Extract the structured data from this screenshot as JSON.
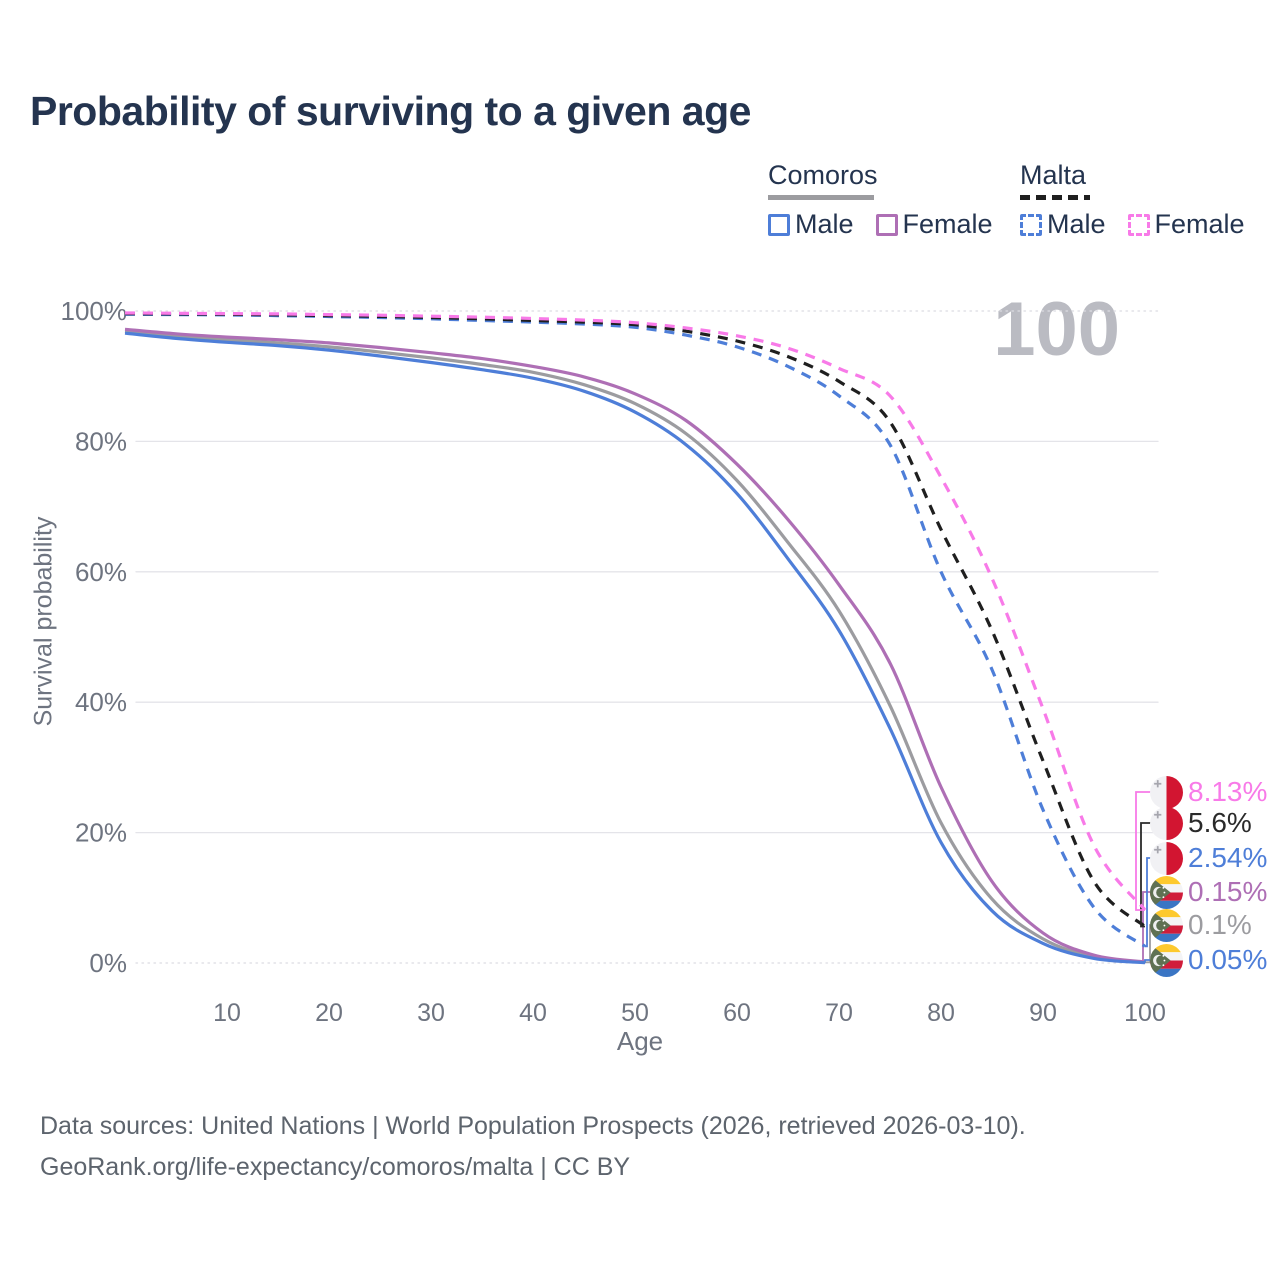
{
  "legend": {
    "groups": [
      {
        "name": "Comoros",
        "line_style": "solid",
        "underline_color": "#9c9ca0",
        "items": [
          {
            "label": "Male",
            "color": "#4e7ed8"
          },
          {
            "label": "Female",
            "color": "#ae6fb5"
          }
        ]
      },
      {
        "name": "Malta",
        "line_style": "dashed",
        "underline_color": "#1f1f1f",
        "items": [
          {
            "label": "Male",
            "color": "#4e7ed8"
          },
          {
            "label": "Female",
            "color": "#f87ae8"
          }
        ]
      }
    ]
  },
  "chart_data": {
    "type": "line",
    "title": "Probability of surviving to a given age",
    "xlabel": "Age",
    "ylabel": "Survival probability",
    "watermark": "100",
    "xlim": [
      0,
      100
    ],
    "ylim": [
      0,
      100
    ],
    "x_ticks": [
      10,
      20,
      30,
      40,
      50,
      60,
      70,
      80,
      90,
      100
    ],
    "y_ticks": [
      0,
      20,
      40,
      60,
      80,
      100
    ],
    "y_tick_suffix": "%",
    "grid": "horizontal",
    "legend_position": "top-right",
    "ages": [
      0,
      5,
      10,
      15,
      20,
      25,
      30,
      35,
      40,
      45,
      50,
      55,
      60,
      65,
      70,
      75,
      80,
      85,
      90,
      95,
      100
    ],
    "series": [
      {
        "name": "Comoros — Both sexes",
        "country": "Comoros",
        "group": "all",
        "color": "#9c9ca0",
        "dashed": false,
        "end_label_index": 4,
        "values": [
          96.9,
          96.1,
          95.6,
          95.1,
          94.5,
          93.7,
          92.8,
          91.8,
          90.6,
          88.7,
          85.8,
          81.2,
          74.0,
          64.5,
          54.0,
          39.5,
          21.5,
          9.8,
          3.7,
          0.9,
          0.1
        ]
      },
      {
        "name": "Comoros — Female",
        "country": "Comoros",
        "group": "Female",
        "color": "#ae6fb5",
        "dashed": false,
        "end_label_index": 3,
        "values": [
          97.2,
          96.5,
          96.0,
          95.6,
          95.1,
          94.4,
          93.6,
          92.7,
          91.5,
          89.9,
          87.3,
          83.2,
          76.5,
          68.0,
          58.0,
          46.0,
          27.0,
          12.5,
          4.6,
          1.2,
          0.15
        ]
      },
      {
        "name": "Comoros — Male",
        "country": "Comoros",
        "group": "Male",
        "color": "#4e7ed8",
        "dashed": false,
        "end_label_index": 5,
        "values": [
          96.6,
          95.8,
          95.2,
          94.7,
          94.0,
          93.1,
          92.1,
          91.0,
          89.7,
          87.7,
          84.5,
          79.5,
          72.0,
          62.0,
          51.0,
          36.0,
          18.5,
          8.0,
          3.0,
          0.7,
          0.05
        ]
      },
      {
        "name": "Malta — Male",
        "country": "Malta",
        "group": "Male",
        "color": "#4e7ed8",
        "dashed": true,
        "end_label_index": 2,
        "values": [
          99.5,
          99.45,
          99.4,
          99.3,
          99.15,
          99.0,
          98.8,
          98.55,
          98.3,
          98.0,
          97.5,
          96.3,
          94.5,
          91.5,
          87.0,
          79.5,
          60.0,
          45.0,
          23.5,
          8.5,
          2.54
        ]
      },
      {
        "name": "Malta — Both sexes",
        "country": "Malta",
        "group": "all",
        "color": "#1f1f1f",
        "dashed": true,
        "end_label_index": 1,
        "values": [
          99.6,
          99.55,
          99.5,
          99.42,
          99.3,
          99.17,
          99.0,
          98.8,
          98.55,
          98.3,
          97.9,
          96.9,
          95.4,
          93.0,
          89.2,
          83.0,
          66.5,
          51.0,
          31.0,
          12.5,
          5.6
        ]
      },
      {
        "name": "Malta — Female",
        "country": "Malta",
        "group": "Female",
        "color": "#f87ae8",
        "dashed": true,
        "end_label_index": 0,
        "values": [
          99.7,
          99.65,
          99.6,
          99.55,
          99.45,
          99.35,
          99.2,
          99.05,
          98.85,
          98.6,
          98.2,
          97.4,
          96.2,
          94.3,
          91.2,
          87.0,
          74.5,
          59.0,
          39.0,
          18.0,
          8.13
        ]
      }
    ],
    "end_labels": [
      {
        "text": "8.13%",
        "flag": "malta",
        "color": "#f87ae8"
      },
      {
        "text": "5.6%",
        "flag": "malta",
        "color": "#2a2a2a"
      },
      {
        "text": "2.54%",
        "flag": "malta",
        "color": "#4e7ed8"
      },
      {
        "text": "0.15%",
        "flag": "comoros",
        "color": "#ae6fb5"
      },
      {
        "text": "0.1%",
        "flag": "comoros",
        "color": "#9c9ca0"
      },
      {
        "text": "0.05%",
        "flag": "comoros",
        "color": "#4e7ed8"
      }
    ],
    "colors": {
      "title_text": "#24344f",
      "axis_text": "#6e7480",
      "gridline": "#e4e4e9",
      "watermark": "#babbc2"
    }
  },
  "footer": {
    "line1": "Data sources: United Nations | World Population Prospects (2026, retrieved 2026-03-10).",
    "line2": "GeoRank.org/life-expectancy/comoros/malta | CC BY"
  }
}
